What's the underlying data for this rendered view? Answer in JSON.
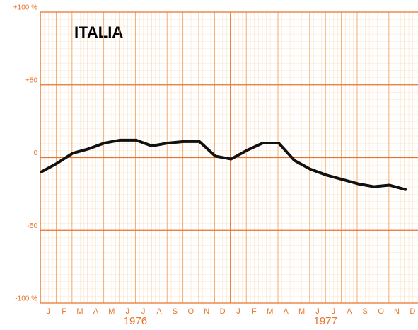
{
  "chart_data": {
    "type": "line",
    "title": "ITALIA",
    "categories": [
      "J",
      "F",
      "M",
      "A",
      "M",
      "J",
      "J",
      "A",
      "S",
      "O",
      "N",
      "D",
      "J",
      "F",
      "M",
      "A",
      "M",
      "J",
      "J",
      "A",
      "S",
      "O",
      "N",
      "D"
    ],
    "groups": [
      {
        "label": "1976",
        "span": [
          0,
          11
        ]
      },
      {
        "label": "1977",
        "span": [
          12,
          23
        ]
      }
    ],
    "series": [
      {
        "color": "#111111",
        "values": [
          -10,
          -4,
          3,
          6,
          10,
          12,
          12,
          8,
          10,
          11,
          11,
          1,
          -1,
          5,
          10,
          10,
          -2,
          -8,
          -12,
          -15,
          -18,
          -20,
          -19,
          -22
        ]
      }
    ],
    "ylim": [
      -100,
      100
    ],
    "yticks": [
      {
        "value": -100,
        "label": "-100 %"
      },
      -50,
      0,
      {
        "value": 50,
        "label": "+50"
      },
      {
        "value": 100,
        "label": "+100 %"
      }
    ],
    "grid": true
  }
}
